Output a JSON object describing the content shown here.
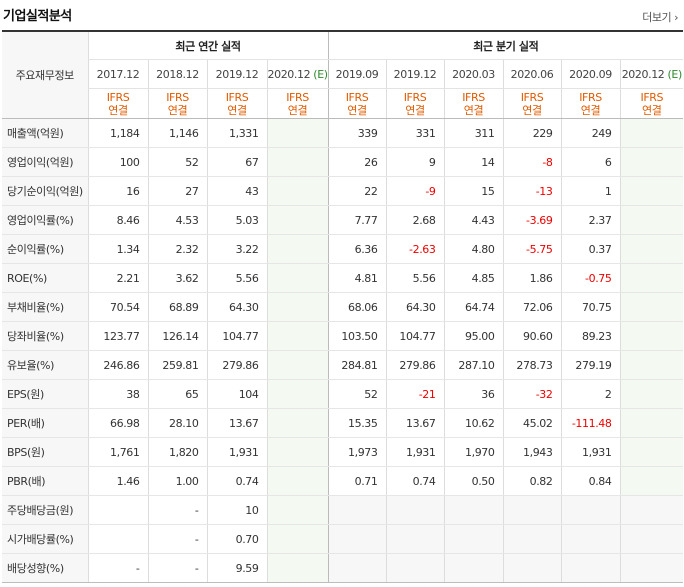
{
  "title": "기업실적분석",
  "more_label": "더보기",
  "more_icon": "chevron-right-icon",
  "group_label": "주요재무정보",
  "annual": {
    "label": "최근 연간 실적",
    "periods": [
      {
        "label": "2017.12",
        "est": ""
      },
      {
        "label": "2018.12",
        "est": ""
      },
      {
        "label": "2019.12",
        "est": ""
      },
      {
        "label": "2020.12",
        "est": "(E)"
      }
    ]
  },
  "quarterly": {
    "label": "최근 분기 실적",
    "periods": [
      {
        "label": "2019.09",
        "est": ""
      },
      {
        "label": "2019.12",
        "est": ""
      },
      {
        "label": "2020.03",
        "est": ""
      },
      {
        "label": "2020.06",
        "est": ""
      },
      {
        "label": "2020.09",
        "est": ""
      },
      {
        "label": "2020.12",
        "est": "(E)"
      }
    ]
  },
  "ifrs": {
    "line1": "IFRS",
    "line2": "연결"
  },
  "rows": [
    {
      "label": "매출액(억원)",
      "values": [
        "1,184",
        "1,146",
        "1,331",
        "",
        "339",
        "331",
        "311",
        "229",
        "249",
        ""
      ]
    },
    {
      "label": "영업이익(억원)",
      "values": [
        "100",
        "52",
        "67",
        "",
        "26",
        "9",
        "14",
        "-8",
        "6",
        ""
      ]
    },
    {
      "label": "당기순이익(억원)",
      "values": [
        "16",
        "27",
        "43",
        "",
        "22",
        "-9",
        "15",
        "-13",
        "1",
        ""
      ]
    },
    {
      "label": "영업이익률(%)",
      "values": [
        "8.46",
        "4.53",
        "5.03",
        "",
        "7.77",
        "2.68",
        "4.43",
        "-3.69",
        "2.37",
        ""
      ]
    },
    {
      "label": "순이익률(%)",
      "values": [
        "1.34",
        "2.32",
        "3.22",
        "",
        "6.36",
        "-2.63",
        "4.80",
        "-5.75",
        "0.37",
        ""
      ]
    },
    {
      "label": "ROE(%)",
      "values": [
        "2.21",
        "3.62",
        "5.56",
        "",
        "4.81",
        "5.56",
        "4.85",
        "1.86",
        "-0.75",
        ""
      ]
    },
    {
      "label": "부채비율(%)",
      "values": [
        "70.54",
        "68.89",
        "64.30",
        "",
        "68.06",
        "64.30",
        "64.74",
        "72.06",
        "70.75",
        ""
      ]
    },
    {
      "label": "당좌비율(%)",
      "values": [
        "123.77",
        "126.14",
        "104.77",
        "",
        "103.50",
        "104.77",
        "95.00",
        "90.60",
        "89.23",
        ""
      ]
    },
    {
      "label": "유보율(%)",
      "values": [
        "246.86",
        "259.81",
        "279.86",
        "",
        "284.81",
        "279.86",
        "287.10",
        "278.73",
        "279.19",
        ""
      ]
    },
    {
      "label": "EPS(원)",
      "values": [
        "38",
        "65",
        "104",
        "",
        "52",
        "-21",
        "36",
        "-32",
        "2",
        ""
      ]
    },
    {
      "label": "PER(배)",
      "values": [
        "66.98",
        "28.10",
        "13.67",
        "",
        "15.35",
        "13.67",
        "10.62",
        "45.02",
        "-111.48",
        ""
      ]
    },
    {
      "label": "BPS(원)",
      "values": [
        "1,761",
        "1,820",
        "1,931",
        "",
        "1,973",
        "1,931",
        "1,970",
        "1,943",
        "1,931",
        ""
      ]
    },
    {
      "label": "PBR(배)",
      "values": [
        "1.46",
        "1.00",
        "0.74",
        "",
        "0.71",
        "0.74",
        "0.50",
        "0.82",
        "0.84",
        ""
      ]
    },
    {
      "label": "주당배당금(원)",
      "values": [
        "",
        "-",
        "10",
        "",
        "",
        "",
        "",
        "",
        "",
        ""
      ]
    },
    {
      "label": "시가배당률(%)",
      "values": [
        "",
        "-",
        "0.70",
        "",
        "",
        "",
        "",
        "",
        "",
        ""
      ]
    },
    {
      "label": "배당성향(%)",
      "values": [
        "-",
        "-",
        "9.59",
        "",
        "",
        "",
        "",
        "",
        "",
        ""
      ]
    }
  ]
}
